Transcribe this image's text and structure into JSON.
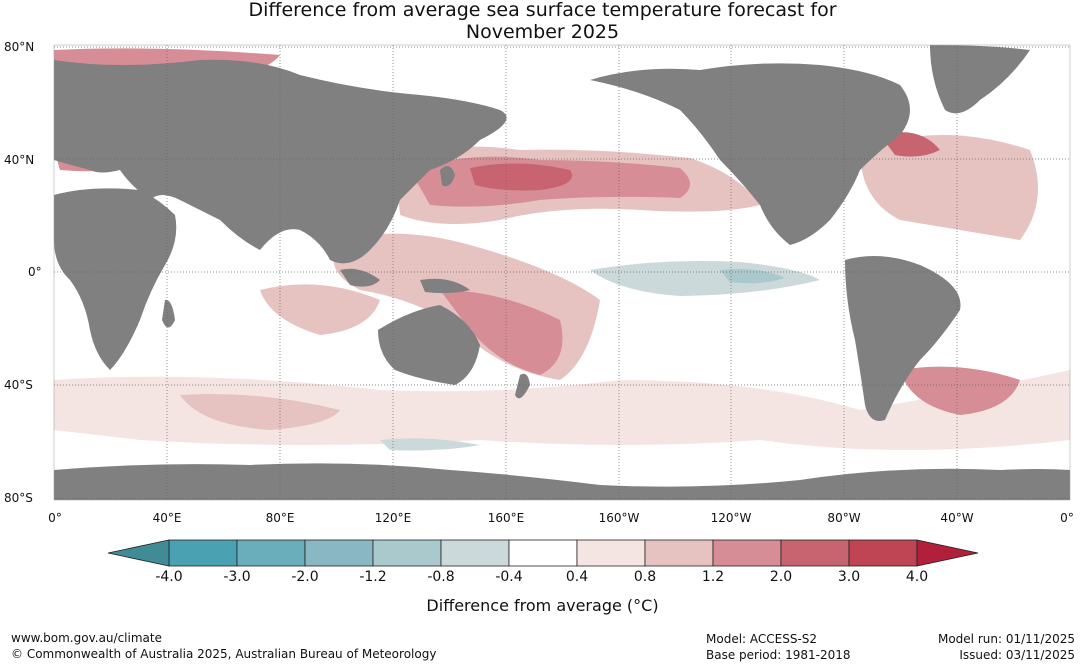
{
  "title": {
    "line1": "Difference from average sea surface temperature forecast for",
    "line2": "November 2025"
  },
  "map": {
    "lat_labels": [
      "80°N",
      "40°N",
      "0°",
      "40°S",
      "80°S"
    ],
    "lon_labels": [
      "0°",
      "40°E",
      "80°E",
      "120°E",
      "160°E",
      "160°W",
      "120°W",
      "80°W",
      "40°W",
      "0°"
    ],
    "land_color": "#808080",
    "ocean_color": "#ffffff",
    "grid_color": "#666666"
  },
  "colorbar": {
    "ticks": [
      "-4.0",
      "-3.0",
      "-2.0",
      "-1.2",
      "-0.8",
      "-0.4",
      "0.4",
      "0.8",
      "1.2",
      "2.0",
      "3.0",
      "4.0"
    ],
    "under_color": "#3f8b96",
    "over_color": "#b21f3a",
    "bins": [
      "#4aa1b2",
      "#6aadbb",
      "#8ab7c4",
      "#a9c9cd",
      "#cbd9da",
      "#ffffff",
      "#f4e5e3",
      "#e6c3c1",
      "#d68d96",
      "#c86470",
      "#bf4454"
    ],
    "label": "Difference from average (°C)"
  },
  "footer": {
    "url": "www.bom.gov.au/climate",
    "copyright": "© Commonwealth of Australia 2025, Australian Bureau of Meteorology",
    "model": "Model: ACCESS-S2",
    "base_period": "Base period: 1981-2018",
    "model_run": "Model run: 01/11/2025",
    "issued": "Issued: 03/11/2025"
  }
}
